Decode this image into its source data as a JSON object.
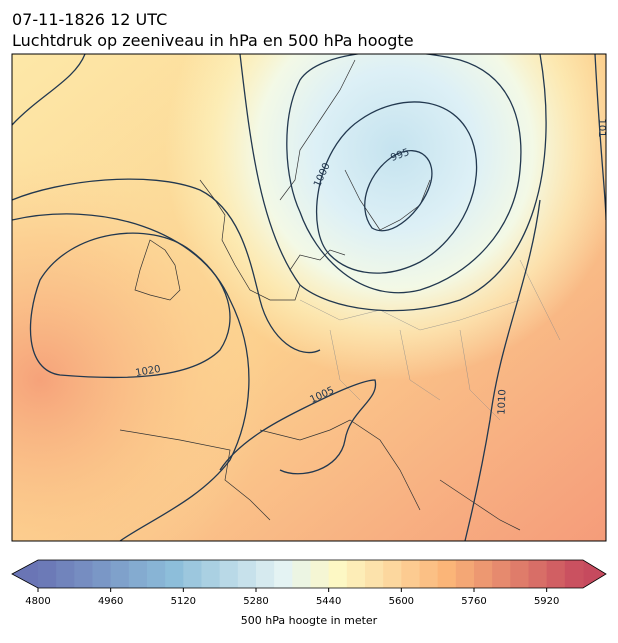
{
  "header": {
    "title": "07-11-1826 12 UTC",
    "subtitle": "Luchtdruk op zeeniveau in hPa en 500 hPa hoogte"
  },
  "map": {
    "isobar_labels": [
      "995",
      "1000",
      "1005",
      "1010",
      "1020",
      "101"
    ]
  },
  "colorbar": {
    "lim": [
      4800,
      6000
    ],
    "ticks": [
      4800,
      4960,
      5120,
      5280,
      5440,
      5600,
      5760,
      5920
    ],
    "label": "500 hPa hoogte in meter"
  }
}
